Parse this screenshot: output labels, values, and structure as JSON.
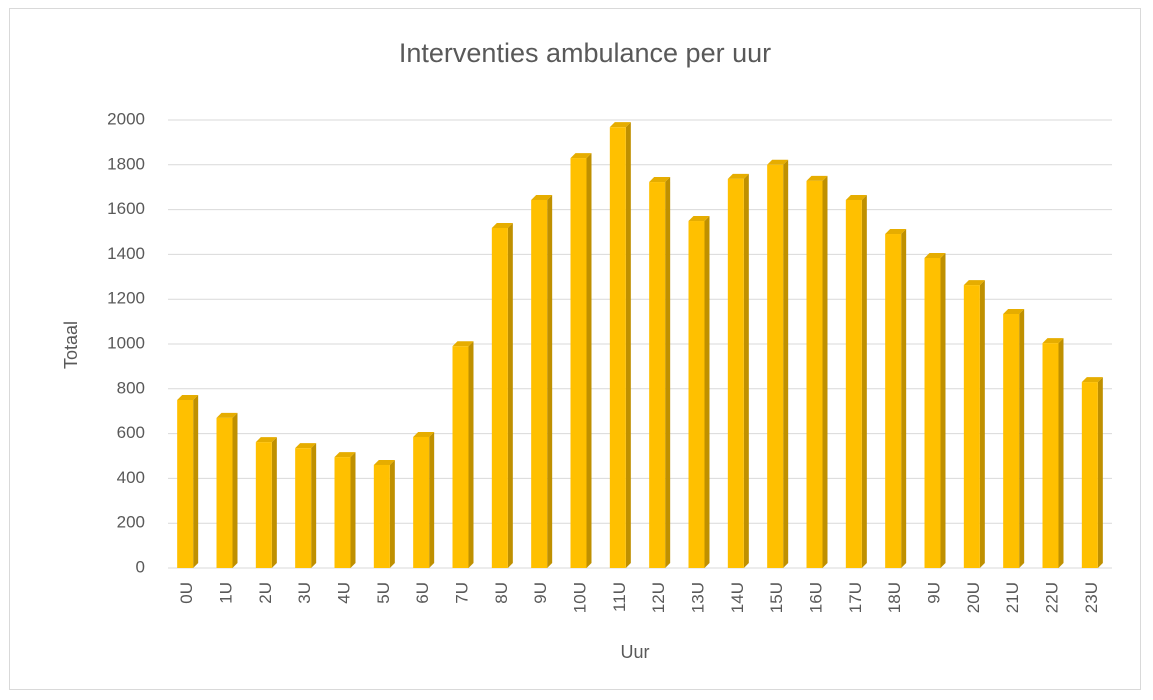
{
  "chart_data": {
    "type": "bar",
    "title": "Interventies ambulance per uur",
    "x_label": "Uur",
    "y_label": "Totaal",
    "categories": [
      "0U",
      "1U",
      "2U",
      "3U",
      "4U",
      "5U",
      "6U",
      "7U",
      "8U",
      "9U",
      "10U",
      "11U",
      "12U",
      "13U",
      "14U",
      "15U",
      "16U",
      "17U",
      "18U",
      "9U",
      "20U",
      "21U",
      "22U",
      "23U"
    ],
    "values": [
      750,
      670,
      562,
      535,
      495,
      460,
      585,
      990,
      1518,
      1643,
      1830,
      1968,
      1723,
      1549,
      1737,
      1800,
      1728,
      1643,
      1491,
      1384,
      1263,
      1134,
      1004,
      830
    ],
    "color": "#ffc000",
    "ylim": [
      0,
      2000
    ],
    "yticks": [
      0,
      200,
      400,
      600,
      800,
      1000,
      1200,
      1400,
      1600,
      1800,
      2000
    ],
    "grid": true
  }
}
